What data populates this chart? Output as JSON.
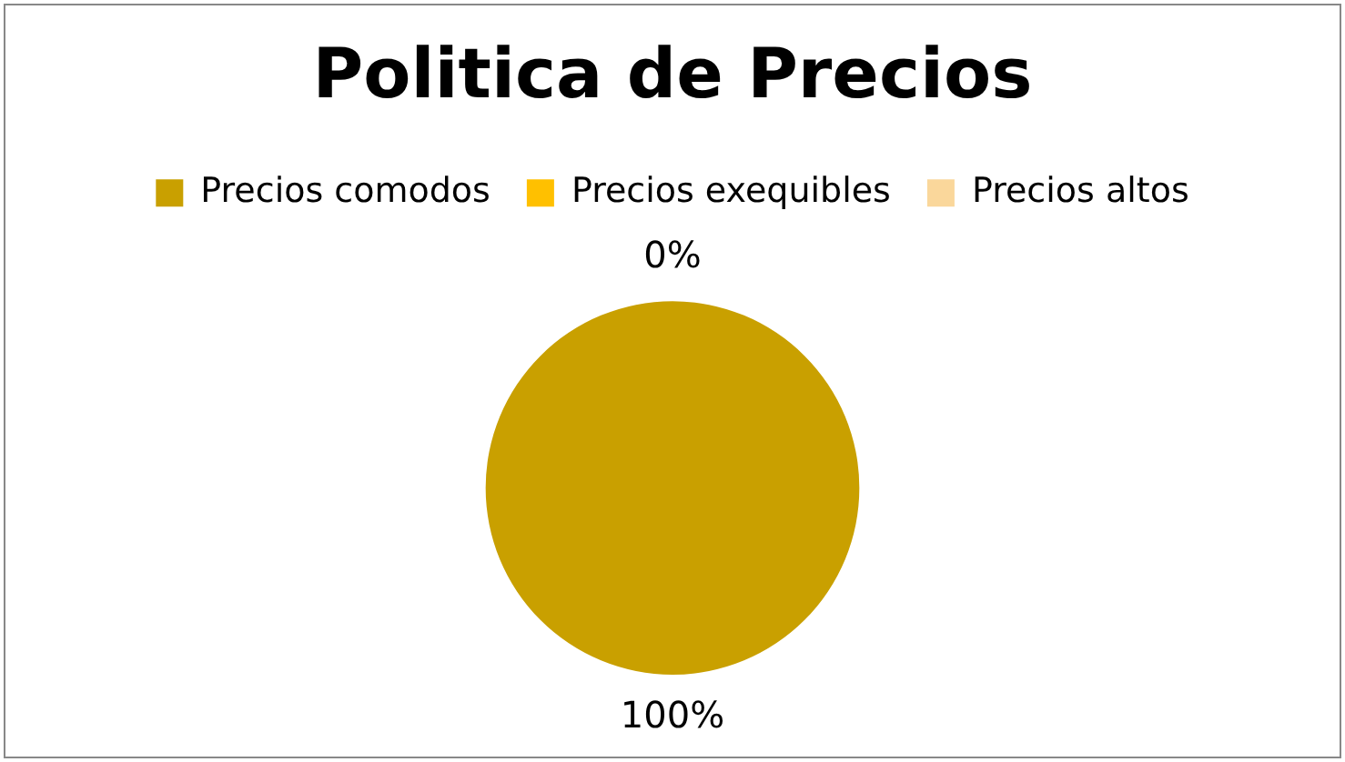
{
  "chart_data": {
    "type": "pie",
    "title": "Politica de Precios",
    "legend": "top",
    "categories": [
      "Precios comodos",
      "Precios exequibles",
      "Precios altos"
    ],
    "values": [
      100,
      0,
      0
    ],
    "colors": [
      "#c9a000",
      "#ffc000",
      "#fad79b"
    ],
    "value_labels": [
      "100%",
      "0%",
      null
    ]
  }
}
